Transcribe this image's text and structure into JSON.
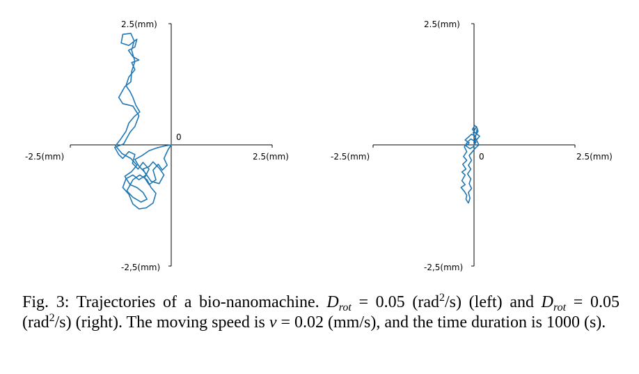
{
  "chart_data": [
    {
      "type": "line",
      "name": "left-panel",
      "title": "",
      "xlabel": "",
      "ylabel": "",
      "xlim": [
        -2.5,
        2.5
      ],
      "ylim": [
        -2.5,
        2.5
      ],
      "tick_labels": {
        "x_min": "-2.5(mm)",
        "x_max": "2.5(mm)",
        "y_max": "2.5(mm)",
        "y_min": "-2,5(mm)",
        "origin": "0"
      },
      "series": [
        {
          "name": "trajectory",
          "color": "#1f77b4",
          "points": [
            [
              0,
              0
            ],
            [
              -0.08,
              -0.1
            ],
            [
              -0.18,
              -0.28
            ],
            [
              -0.1,
              -0.42
            ],
            [
              -0.22,
              -0.52
            ],
            [
              -0.32,
              -0.4
            ],
            [
              -0.45,
              -0.52
            ],
            [
              -0.38,
              -0.72
            ],
            [
              -0.55,
              -0.82
            ],
            [
              -0.66,
              -0.68
            ],
            [
              -0.55,
              -0.5
            ],
            [
              -0.7,
              -0.36
            ],
            [
              -0.82,
              -0.5
            ],
            [
              -0.96,
              -0.38
            ],
            [
              -0.9,
              -0.2
            ],
            [
              -1.05,
              -0.14
            ],
            [
              -1.2,
              -0.28
            ],
            [
              -1.3,
              -0.2
            ],
            [
              -1.4,
              -0.05
            ],
            [
              -1.18,
              0.02
            ],
            [
              -1.02,
              0.26
            ],
            [
              -0.9,
              0.38
            ],
            [
              -0.8,
              0.6
            ],
            [
              -0.95,
              0.8
            ],
            [
              -1.2,
              0.85
            ],
            [
              -1.3,
              0.98
            ],
            [
              -1.15,
              1.2
            ],
            [
              -1.0,
              1.3
            ],
            [
              -0.98,
              1.52
            ],
            [
              -0.9,
              1.72
            ],
            [
              -0.98,
              1.95
            ],
            [
              -0.92,
              2.15
            ],
            [
              -1.0,
              2.3
            ],
            [
              -1.2,
              2.28
            ],
            [
              -1.24,
              2.1
            ],
            [
              -1.05,
              2.05
            ],
            [
              -0.85,
              2.18
            ],
            [
              -0.9,
              2.02
            ],
            [
              -1.06,
              1.95
            ],
            [
              -0.95,
              1.82
            ],
            [
              -0.8,
              1.75
            ],
            [
              -0.98,
              1.7
            ],
            [
              -0.9,
              1.55
            ],
            [
              -1.05,
              1.4
            ],
            [
              -1.12,
              1.22
            ],
            [
              -1.02,
              1.1
            ],
            [
              -0.95,
              0.98
            ],
            [
              -0.88,
              0.82
            ],
            [
              -0.78,
              0.68
            ],
            [
              -0.92,
              0.58
            ],
            [
              -1.05,
              0.45
            ],
            [
              -1.12,
              0.28
            ],
            [
              -1.25,
              0.12
            ],
            [
              -1.38,
              -0.02
            ],
            [
              -1.22,
              -0.18
            ],
            [
              -1.0,
              -0.28
            ],
            [
              -0.85,
              -0.42
            ],
            [
              -0.98,
              -0.55
            ],
            [
              -1.15,
              -0.65
            ],
            [
              -1.02,
              -0.82
            ],
            [
              -0.85,
              -0.88
            ],
            [
              -0.7,
              -0.98
            ],
            [
              -0.6,
              -1.12
            ],
            [
              -0.75,
              -1.18
            ],
            [
              -0.95,
              -1.08
            ],
            [
              -1.1,
              -0.95
            ],
            [
              -0.95,
              -0.72
            ],
            [
              -0.78,
              -0.62
            ],
            [
              -0.6,
              -0.72
            ],
            [
              -0.5,
              -0.88
            ],
            [
              -0.38,
              -1.0
            ],
            [
              -0.45,
              -1.2
            ],
            [
              -0.62,
              -1.3
            ],
            [
              -0.8,
              -1.32
            ],
            [
              -0.95,
              -1.22
            ],
            [
              -1.05,
              -1.02
            ],
            [
              -1.2,
              -0.88
            ],
            [
              -1.12,
              -0.7
            ],
            [
              -0.95,
              -0.62
            ],
            [
              -0.8,
              -0.72
            ],
            [
              -0.62,
              -0.62
            ],
            [
              -0.7,
              -0.5
            ],
            [
              -0.55,
              -0.45
            ],
            [
              -0.45,
              -0.35
            ],
            [
              -0.3,
              -0.48
            ],
            [
              -0.18,
              -0.62
            ],
            [
              -0.3,
              -0.8
            ],
            [
              -0.5,
              -0.75
            ],
            [
              -0.66,
              -0.56
            ],
            [
              -0.8,
              -0.44
            ],
            [
              -0.9,
              -0.3
            ],
            [
              -0.72,
              -0.22
            ],
            [
              -0.55,
              -0.12
            ],
            [
              -0.35,
              -0.06
            ],
            [
              -0.15,
              -0.02
            ],
            [
              0,
              0
            ]
          ]
        }
      ]
    },
    {
      "type": "line",
      "name": "right-panel",
      "title": "",
      "xlabel": "",
      "ylabel": "",
      "xlim": [
        -2.5,
        2.5
      ],
      "ylim": [
        -2.5,
        2.5
      ],
      "tick_labels": {
        "x_min": "-2.5(mm)",
        "x_max": "2.5(mm)",
        "y_max": "2.5(mm)",
        "y_min": "-2,5(mm)",
        "origin": "0"
      },
      "series": [
        {
          "name": "trajectory",
          "color": "#1f77b4",
          "points": [
            [
              0,
              0
            ],
            [
              0.05,
              0.12
            ],
            [
              -0.02,
              0.25
            ],
            [
              0.06,
              0.38
            ],
            [
              0.1,
              0.28
            ],
            [
              0.03,
              0.18
            ],
            [
              -0.06,
              0.22
            ],
            [
              -0.14,
              0.16
            ],
            [
              -0.22,
              0.1
            ],
            [
              -0.12,
              0.04
            ],
            [
              -0.2,
              -0.02
            ],
            [
              -0.1,
              -0.08
            ],
            [
              -0.02,
              -0.04
            ],
            [
              0.05,
              0.06
            ],
            [
              -0.08,
              0.12
            ],
            [
              -0.16,
              0.06
            ],
            [
              -0.24,
              -0.04
            ],
            [
              -0.18,
              -0.14
            ],
            [
              -0.26,
              -0.24
            ],
            [
              -0.18,
              -0.32
            ],
            [
              -0.28,
              -0.4
            ],
            [
              -0.2,
              -0.5
            ],
            [
              -0.3,
              -0.56
            ],
            [
              -0.22,
              -0.62
            ],
            [
              -0.3,
              -0.74
            ],
            [
              -0.22,
              -0.82
            ],
            [
              -0.32,
              -0.88
            ],
            [
              -0.24,
              -0.96
            ],
            [
              -0.18,
              -1.04
            ],
            [
              -0.2,
              -1.12
            ],
            [
              -0.14,
              -1.2
            ],
            [
              -0.1,
              -1.1
            ],
            [
              -0.14,
              -0.98
            ],
            [
              -0.06,
              -0.9
            ],
            [
              -0.12,
              -0.8
            ],
            [
              -0.08,
              -0.7
            ],
            [
              -0.16,
              -0.6
            ],
            [
              -0.08,
              -0.5
            ],
            [
              -0.14,
              -0.42
            ],
            [
              -0.06,
              -0.32
            ],
            [
              -0.12,
              -0.22
            ],
            [
              -0.04,
              -0.14
            ],
            [
              0.04,
              -0.06
            ],
            [
              0.12,
              0.0
            ],
            [
              0.06,
              0.1
            ],
            [
              0.14,
              0.18
            ],
            [
              0.04,
              0.24
            ],
            [
              -0.04,
              0.32
            ],
            [
              0.02,
              0.4
            ],
            [
              0.08,
              0.34
            ],
            [
              0.02,
              0.1
            ]
          ]
        }
      ]
    }
  ],
  "caption": {
    "part1": "Fig. 3: Trajectories of a bio-nanomachine. ",
    "var_d": "D",
    "sub_rot": "rot",
    "part2": " = 0.05 (rad",
    "sup_2": "2",
    "part3": "/s) (left) and ",
    "var_d2": "D",
    "sub_rot2": "rot",
    "part4": " = 0.05 (rad",
    "sup_2b": "2",
    "part5": "/s) (right). The moving speed is ",
    "var_v": "v",
    "part6": " = 0.02 (mm/s), and the time duration is 1000 (s)."
  }
}
